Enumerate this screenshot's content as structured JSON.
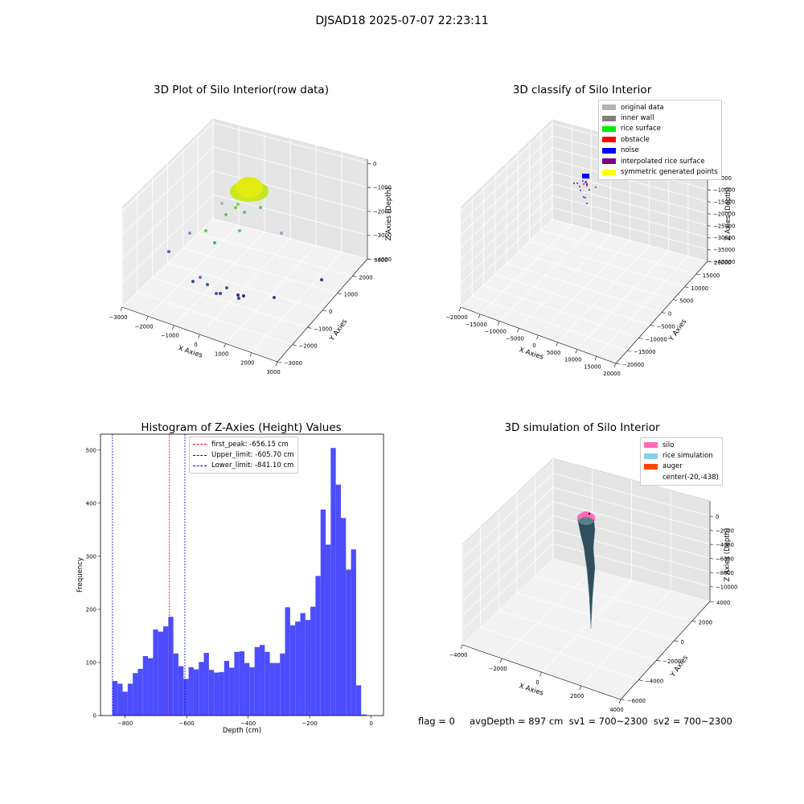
{
  "suptitle": "DJSAD18 2025-07-07 22:23:11",
  "colors": {
    "histogram_bar": "#4d4dff",
    "first_peak": "#ff0000",
    "limits": "#0000cc",
    "pane": "#f2f2f2"
  },
  "chart_data": [
    {
      "type": "scatter",
      "title": "3D Plot of Silo Interior(row data)",
      "xlabel": "X Axies",
      "ylabel": "Y Axies",
      "zlabel": "Z Axies (Depth)",
      "x_ticks": [
        "−3000",
        "−2000",
        "−1000",
        "0",
        "1000",
        "2000",
        "3000"
      ],
      "y_ticks": [
        "−3000",
        "−2000",
        "−1000",
        "0",
        "1000",
        "2000",
        "3000"
      ],
      "z_ticks": [
        "0",
        "−1000",
        "−2000",
        "−3000",
        "−4000"
      ],
      "grid": true
    },
    {
      "type": "scatter",
      "title": "3D classify of Silo Interior",
      "xlabel": "X Axies",
      "ylabel": "Y Axies",
      "zlabel": "Z Axies (Depth)",
      "x_ticks": [
        "−20000",
        "−15000",
        "−10000",
        "−5000",
        "0",
        "5000",
        "10000",
        "15000",
        "20000"
      ],
      "y_ticks": [
        "−20000",
        "−15000",
        "−10000",
        "−5000",
        "0",
        "5000",
        "10000",
        "15000",
        "20000"
      ],
      "z_ticks": [
        "0",
        "−5000",
        "−10000",
        "−15000",
        "−20000",
        "−25000",
        "−30000",
        "−35000",
        "−40000"
      ],
      "legend": [
        {
          "label": "original data",
          "color": "#b3b3b3"
        },
        {
          "label": "inner wall",
          "color": "#808080"
        },
        {
          "label": "rice surface",
          "color": "#00ee00"
        },
        {
          "label": "obstacle",
          "color": "#ff0000"
        },
        {
          "label": "noise",
          "color": "#0000ff"
        },
        {
          "label": "interpolated rice surface",
          "color": "#800080"
        },
        {
          "label": "symmetric generated points",
          "color": "#ffff00"
        }
      ],
      "legend_position": "top-right",
      "grid": true
    },
    {
      "type": "bar",
      "title": "Histogram of Z-Axies (Height) Values",
      "xlabel": "Depth (cm)",
      "ylabel": "Frequency",
      "xlim": [
        -880,
        40
      ],
      "ylim": [
        0,
        530
      ],
      "x_ticks": [
        -800,
        -600,
        -400,
        -200,
        0
      ],
      "x_tick_labels": [
        "−800",
        "−600",
        "−400",
        "−200",
        "0"
      ],
      "y_ticks": [
        0,
        100,
        200,
        300,
        400,
        500
      ],
      "bin_start": -841.1,
      "bin_width": 16.5,
      "values": [
        65,
        60,
        45,
        60,
        80,
        88,
        112,
        108,
        162,
        158,
        168,
        186,
        117,
        93,
        69,
        91,
        87,
        101,
        118,
        86,
        81,
        82,
        103,
        90,
        120,
        121,
        99,
        91,
        129,
        133,
        120,
        99,
        99,
        117,
        204,
        170,
        177,
        193,
        180,
        205,
        263,
        388,
        322,
        504,
        435,
        372,
        275,
        313,
        57,
        2
      ],
      "vlines": [
        {
          "label": "first_peak: -656.15 cm",
          "x": -656.15,
          "color": "#ff0000"
        },
        {
          "label": "Upper_limit: -605.70 cm",
          "x": -605.7,
          "color": "#0000cc"
        },
        {
          "label": "Lower_limit: -841.10 cm",
          "x": -841.1,
          "color": "#0000cc"
        }
      ],
      "legend_position": "top-center",
      "grid": false
    },
    {
      "type": "area",
      "title": "3D simulation of Silo Interior",
      "xlabel": "X Axies",
      "ylabel": "Y Axies",
      "zlabel": "Z Axies (Depth)",
      "x_ticks": [
        "−4000",
        "−2000",
        "0",
        "2000",
        "4000"
      ],
      "y_ticks": [
        "−6000",
        "−4000",
        "−2000",
        "0",
        "2000",
        "4000"
      ],
      "z_ticks": [
        "0",
        "−2000",
        "−4000",
        "−6000",
        "−8000",
        "−10000"
      ],
      "legend": [
        {
          "label": "silo",
          "color": "#ff69b4"
        },
        {
          "label": "rice simulation",
          "color": "#87ceeb"
        },
        {
          "label": "auger",
          "color": "#ff4500"
        },
        {
          "label": "center(-20,-438)",
          "color": ""
        }
      ],
      "legend_position": "top-right",
      "grid": true
    }
  ],
  "status_line": "flag = 0     avgDepth = 897 cm  sv1 = 700~2300  sv2 = 700~2300"
}
